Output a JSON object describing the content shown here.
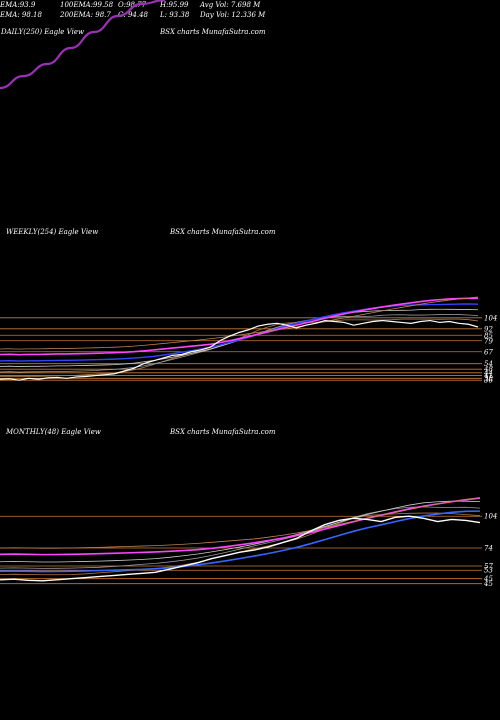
{
  "header": {
    "row1": [
      "EMA:93.9",
      "100EMA:99.58",
      "O:98.77",
      "H:95.99",
      "Avg Vol: 7.698  M"
    ],
    "row2": [
      "EMA: 98.18",
      "200EMA: 98.7",
      "C: 94.48",
      "L: 93.38",
      "Day Vol: 12.336  M"
    ]
  },
  "chart_data": [
    {
      "type": "line",
      "title": "DAILY(250) Eagle  View",
      "subtitle": "BSX  charts MunafaSutra.com",
      "series_color": "#9b2fb5",
      "x": [
        0,
        1,
        2,
        3,
        4,
        5,
        6,
        7
      ],
      "y": [
        60,
        66,
        72,
        80,
        88,
        96,
        102,
        104
      ]
    },
    {
      "type": "line",
      "title": "WEEKLY(254) Eagle  View",
      "subtitle": "BSX  charts MunafaSutra.com",
      "yticks": [
        "104",
        "92",
        "85",
        "79",
        "67",
        "54",
        "48",
        "44",
        "41",
        "38",
        "36"
      ],
      "price": [
        37,
        37.5,
        36,
        38,
        37,
        38.5,
        39,
        38,
        39.5,
        40,
        41,
        42,
        43,
        46,
        49,
        54,
        57,
        60,
        63,
        64,
        67,
        69,
        72,
        79,
        84,
        88,
        91,
        95,
        97,
        98,
        96,
        93,
        96,
        98,
        101,
        100,
        99,
        96,
        98,
        100,
        101,
        100,
        99,
        98,
        100,
        101,
        99,
        100,
        98,
        97,
        94
      ]
    },
    {
      "type": "line",
      "title": "MONTHLY(48) Eagle  View",
      "subtitle": "BSX  charts MunafaSutra.com",
      "yticks": [
        "104",
        "74",
        "57",
        "53",
        "45",
        "45"
      ],
      "price": [
        44,
        44.5,
        43.5,
        43,
        44,
        45,
        46,
        47,
        48,
        49,
        50,
        51,
        54,
        57,
        60,
        64,
        67,
        70,
        72,
        75,
        79,
        83,
        90,
        96,
        100,
        102,
        101,
        99,
        103,
        104,
        102,
        99,
        101,
        100,
        98
      ]
    }
  ]
}
